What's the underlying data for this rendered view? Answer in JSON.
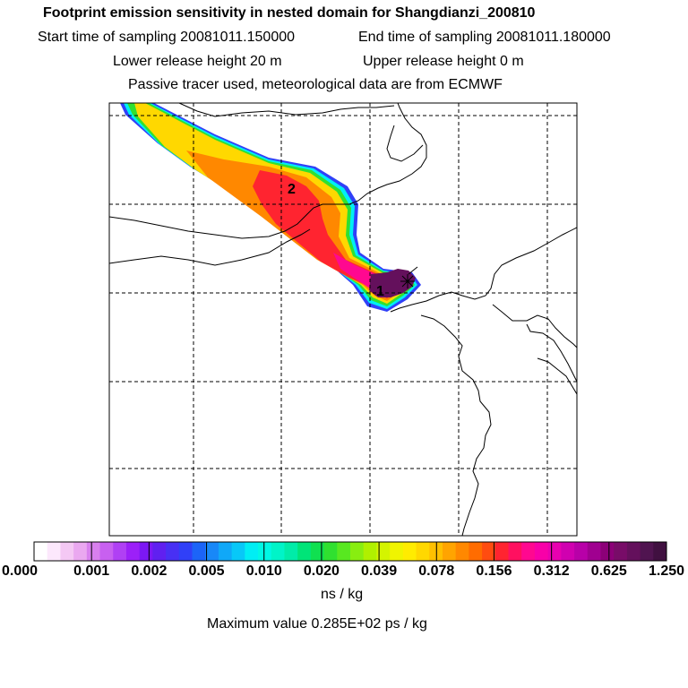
{
  "title": "Footprint emission sensitivity in nested domain for Shangdianzi_200810",
  "start_time": "Start time of sampling 20081011.150000",
  "end_time": "End time of sampling 20081011.180000",
  "lower_release": "Lower release height   20 m",
  "upper_release": "Upper release height    0 m",
  "tracer_note": "Passive tracer used, meteorological data are from ECMWF",
  "map": {
    "labels": [
      {
        "text": "1"
      },
      {
        "text": "2"
      }
    ]
  },
  "colorbar": {
    "ticks": [
      "0.000",
      "0.001",
      "0.002",
      "0.005",
      "0.010",
      "0.020",
      "0.039",
      "0.078",
      "0.156",
      "0.312",
      "0.625",
      "1.250"
    ],
    "colors": [
      "#ffffff",
      "#fce8fc",
      "#f4c8f4",
      "#eaa8f0",
      "#d880ee",
      "#c860f0",
      "#b040f4",
      "#9c20f8",
      "#7c18f4",
      "#6020f0",
      "#4830f4",
      "#3040f8",
      "#1c64f8",
      "#1888f8",
      "#10a8f8",
      "#08c8f8",
      "#00eef4",
      "#00f8e4",
      "#00f4c8",
      "#00eca8",
      "#00e478",
      "#10e050",
      "#30e030",
      "#58e820",
      "#88ee10",
      "#b0f000",
      "#d4f400",
      "#f0f400",
      "#ffec00",
      "#ffd800",
      "#ffc000",
      "#ffa400",
      "#ff8800",
      "#ff6c00",
      "#ff4c10",
      "#ff2430",
      "#ff1060",
      "#ff0890",
      "#f800a8",
      "#e800b0",
      "#d000b0",
      "#b800a8",
      "#a00090",
      "#8c0078",
      "#780c68",
      "#64105c",
      "#501450",
      "#401040"
    ],
    "unit": "ns / kg"
  },
  "max_value": "Maximum value  0.285E+02 ps / kg"
}
